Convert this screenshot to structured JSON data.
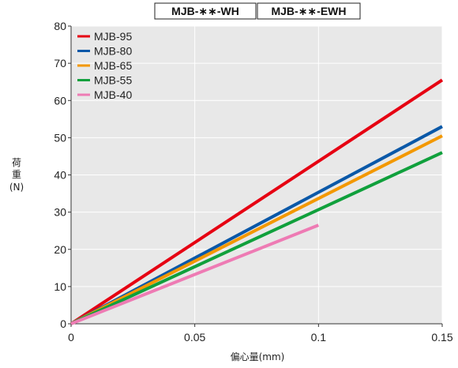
{
  "chart_data": {
    "type": "line",
    "title_boxes": [
      "MJB-∗∗-WH",
      "MJB-∗∗-EWH"
    ],
    "ylabel_lines": [
      "荷",
      "重",
      "(N)"
    ],
    "xlabel": "偏心量(mm)",
    "xlim": [
      0,
      0.15
    ],
    "ylim": [
      0,
      80
    ],
    "x_ticks": [
      0,
      0.05,
      0.1,
      0.15
    ],
    "x_tick_labels": [
      "0",
      "0.05",
      "0.1",
      "0.15"
    ],
    "y_ticks": [
      0,
      10,
      20,
      30,
      40,
      50,
      60,
      70,
      80
    ],
    "y_tick_labels": [
      "0",
      "10",
      "20",
      "30",
      "40",
      "50",
      "60",
      "70",
      "80"
    ],
    "grid": true,
    "legend_position": "top-left",
    "series": [
      {
        "name": "MJB-95",
        "color": "#e60012",
        "x": [
          0,
          0.15
        ],
        "y": [
          0,
          65.5
        ]
      },
      {
        "name": "MJB-80",
        "color": "#0a58a8",
        "x": [
          0,
          0.15
        ],
        "y": [
          0,
          53
        ]
      },
      {
        "name": "MJB-65",
        "color": "#f39800",
        "x": [
          0,
          0.15
        ],
        "y": [
          0,
          50.5
        ]
      },
      {
        "name": "MJB-55",
        "color": "#10a03c",
        "x": [
          0,
          0.15
        ],
        "y": [
          0,
          46
        ]
      },
      {
        "name": "MJB-40",
        "color": "#ee7bb4",
        "x": [
          0,
          0.1
        ],
        "y": [
          0,
          26.5
        ]
      }
    ]
  }
}
